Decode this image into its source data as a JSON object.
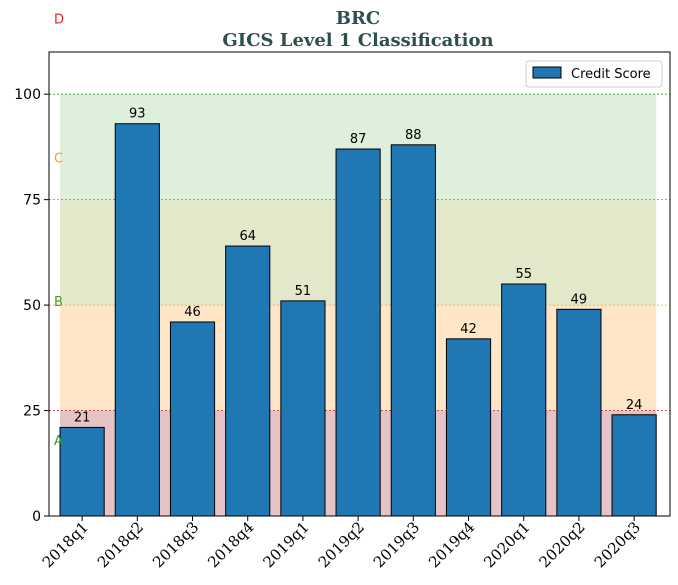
{
  "chart_data": {
    "type": "bar",
    "title": "BRC",
    "subtitle": "GICS Level 1 Classification",
    "xlabel": "",
    "ylabel": "",
    "categories": [
      "2018q1",
      "2018q2",
      "2018q3",
      "2018q4",
      "2019q1",
      "2019q2",
      "2019q3",
      "2019q4",
      "2020q1",
      "2020q2",
      "2020q3"
    ],
    "series": [
      {
        "name": "Credit Score",
        "values": [
          21,
          93,
          46,
          64,
          51,
          87,
          88,
          42,
          55,
          49,
          24
        ],
        "color": "#1f77b4"
      }
    ],
    "ylim": [
      0,
      110
    ],
    "yticks": [
      0,
      25,
      50,
      75,
      100
    ],
    "grid": false,
    "legend": "top-right",
    "bands": [
      {
        "label": "A",
        "from": 0,
        "to": 25,
        "fill": "#d9a3a8",
        "line": "#cc3333",
        "label_color": "#2ca02c",
        "label_at": 18
      },
      {
        "label": "B",
        "from": 25,
        "to": 50,
        "fill": "#ffd9a8",
        "line": "#ff9f1c",
        "label_color": "#4a9a2a",
        "label_at": 51
      },
      {
        "label": "C",
        "from": 50,
        "to": 75,
        "fill": "#d6dcaf",
        "line": "#7a9a2a",
        "label_color": "#ff9f1c",
        "label_at": 85
      },
      {
        "label": "D",
        "from": 75,
        "to": 100,
        "fill": "#cde6c7",
        "line": "#2ca02c",
        "label_color": "#d62728",
        "label_at": 118
      }
    ]
  }
}
